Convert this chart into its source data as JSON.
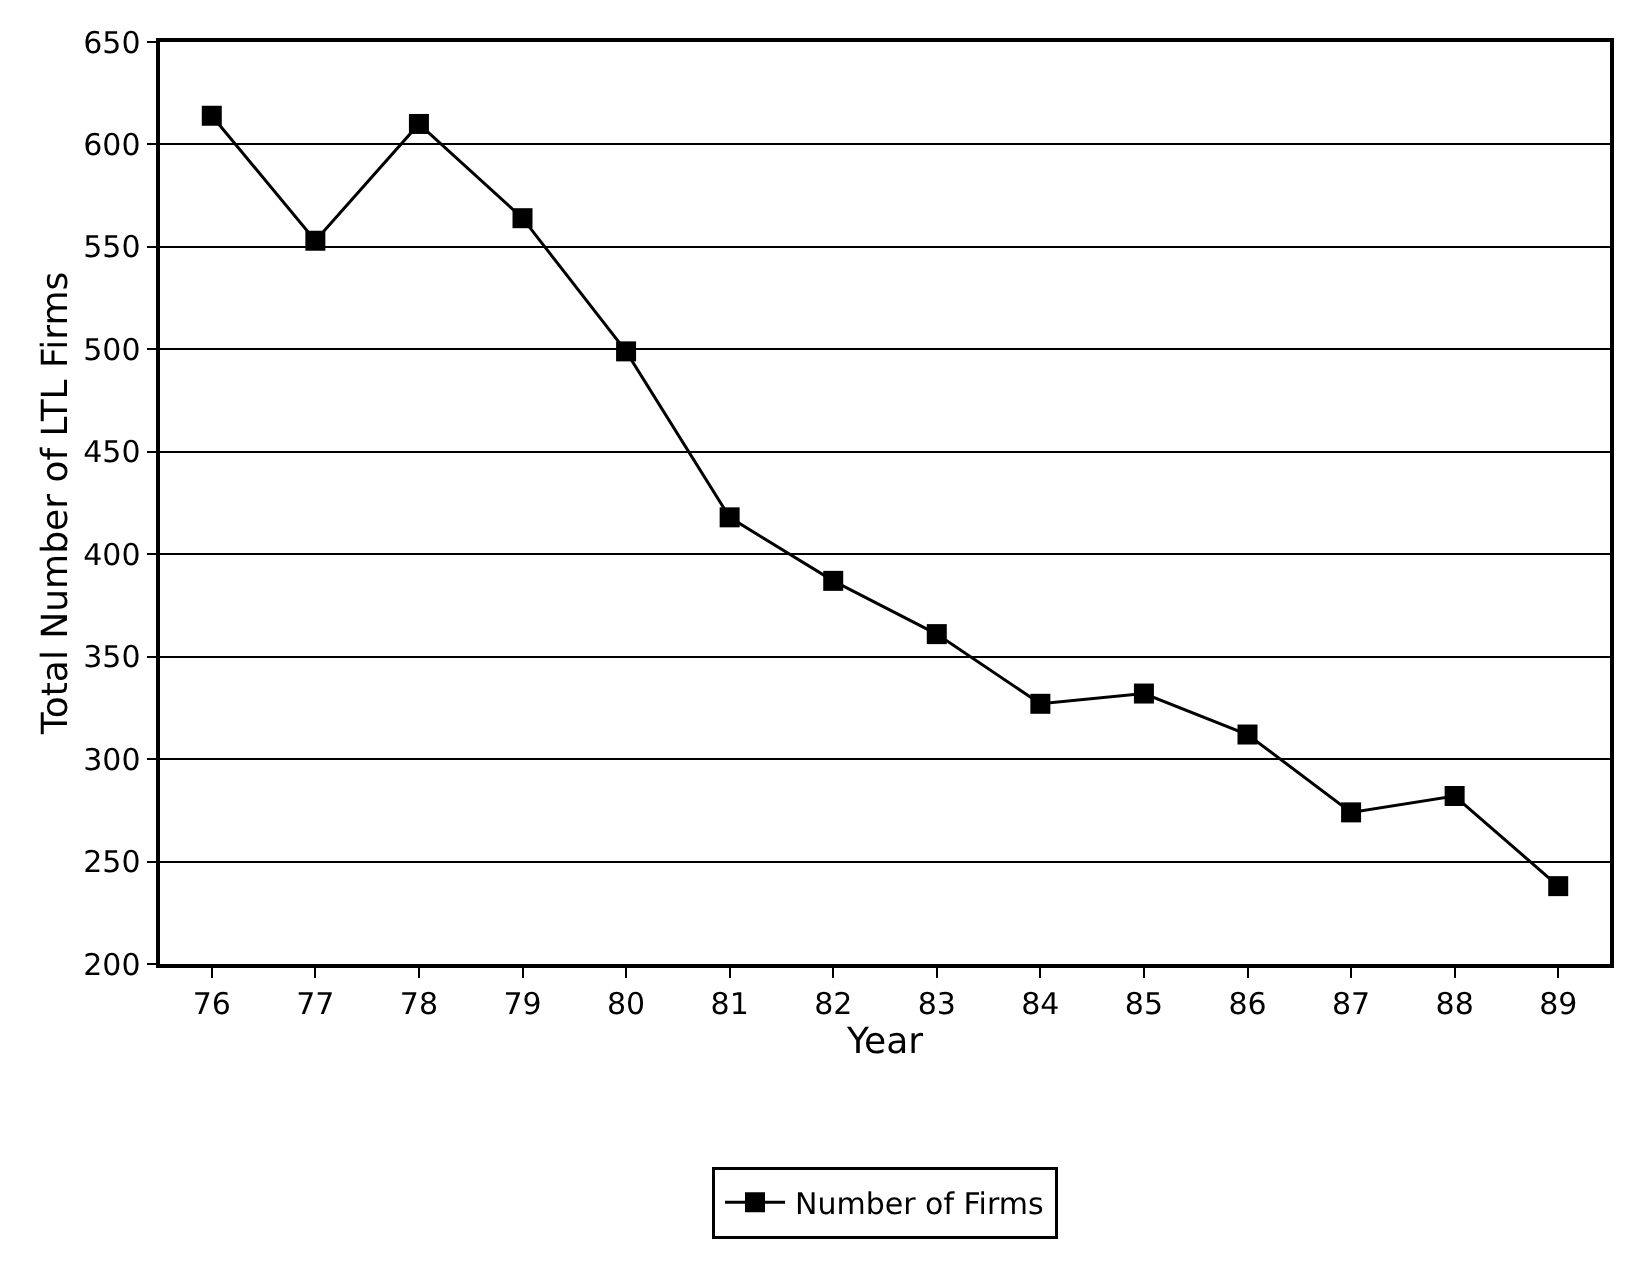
{
  "chart_data": {
    "type": "line",
    "xlabel": "Year",
    "ylabel": "Total Number of LTL Firms",
    "categories": [
      "76",
      "77",
      "78",
      "79",
      "80",
      "81",
      "82",
      "83",
      "84",
      "85",
      "86",
      "87",
      "88",
      "89"
    ],
    "series": [
      {
        "name": "Number of Firms",
        "color": "#000000",
        "values": [
          614,
          553,
          610,
          564,
          499,
          418,
          387,
          361,
          327,
          332,
          312,
          274,
          282,
          238
        ]
      }
    ],
    "ylim": [
      200,
      650
    ],
    "yticks": [
      200,
      250,
      300,
      350,
      400,
      450,
      500,
      550,
      600,
      650
    ],
    "grid": "y",
    "legend": "bottom",
    "marker": "square",
    "line_style": "solid"
  }
}
